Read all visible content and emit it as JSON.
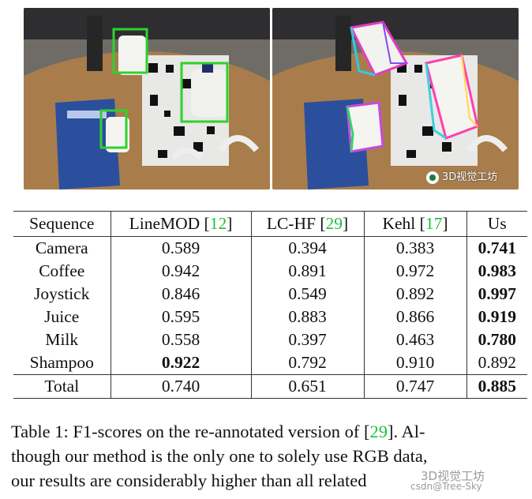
{
  "photos": {
    "left": {
      "overlay": "green bounding boxes"
    },
    "right": {
      "overlay": "colored 3D pose boxes"
    },
    "watermark": "3D视觉工坊"
  },
  "table": {
    "headers": {
      "sequence": "Sequence",
      "linemod": "LineMOD",
      "linemod_ref": "12",
      "lchf": "LC-HF",
      "lchf_ref": "29",
      "kehl": "Kehl",
      "kehl_ref": "17",
      "us": "Us"
    },
    "rows": [
      {
        "sequence": "Camera",
        "linemod": "0.589",
        "lchf": "0.394",
        "kehl": "0.383",
        "us": "0.741",
        "best": "us"
      },
      {
        "sequence": "Coffee",
        "linemod": "0.942",
        "lchf": "0.891",
        "kehl": "0.972",
        "us": "0.983",
        "best": "us"
      },
      {
        "sequence": "Joystick",
        "linemod": "0.846",
        "lchf": "0.549",
        "kehl": "0.892",
        "us": "0.997",
        "best": "us"
      },
      {
        "sequence": "Juice",
        "linemod": "0.595",
        "lchf": "0.883",
        "kehl": "0.866",
        "us": "0.919",
        "best": "us"
      },
      {
        "sequence": "Milk",
        "linemod": "0.558",
        "lchf": "0.397",
        "kehl": "0.463",
        "us": "0.780",
        "best": "us"
      },
      {
        "sequence": "Shampoo",
        "linemod": "0.922",
        "lchf": "0.792",
        "kehl": "0.910",
        "us": "0.892",
        "best": "linemod"
      }
    ],
    "total": {
      "sequence": "Total",
      "linemod": "0.740",
      "lchf": "0.651",
      "kehl": "0.747",
      "us": "0.885",
      "best": "us"
    }
  },
  "caption": {
    "line1_pre": "Table 1: F1-scores on the re-annotated version of [",
    "line1_ref": "29",
    "line1_post": "]. Al-",
    "line2": "though our method is the only one to solely use RGB data,",
    "line3": "our results are considerably higher than all related",
    "watermark": "3D视觉工坊",
    "watermark2": "csdn@Tree-Sky"
  },
  "colors": {
    "citation": "#1fbf3a",
    "bbox_green": "#2fd12f"
  }
}
